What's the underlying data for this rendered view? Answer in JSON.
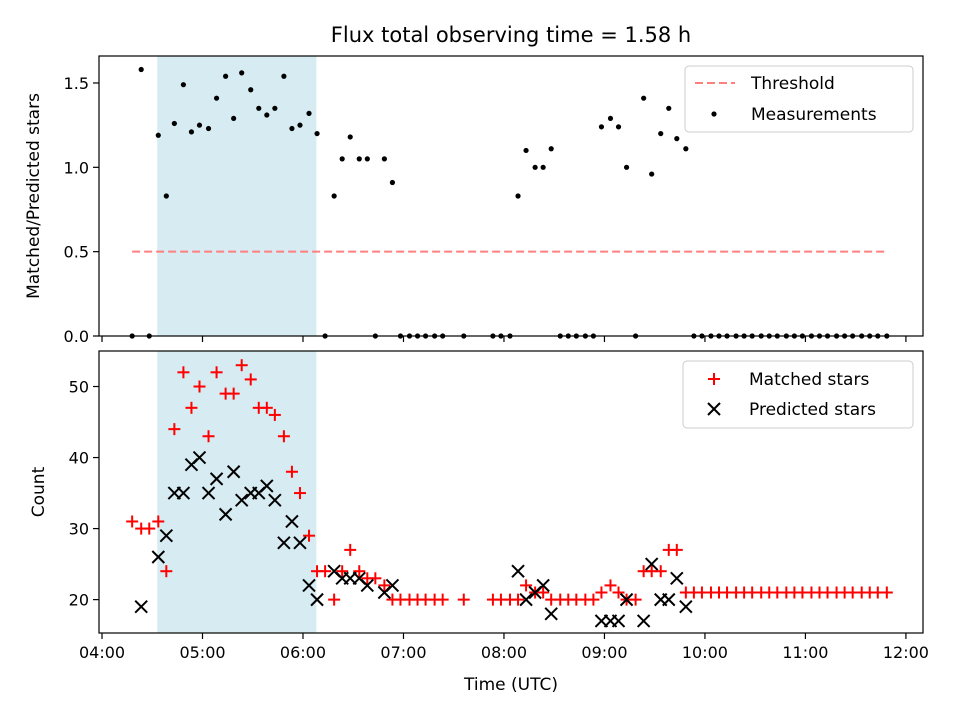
{
  "chart_data": [
    {
      "type": "scatter",
      "title": "Flux total observing time = 1.58 h",
      "xlabel": "",
      "ylabel": "Matched/Predicted stars",
      "x_unit": "hours UTC",
      "xlim": [
        3.97,
        12.17
      ],
      "ylim": [
        0,
        1.66
      ],
      "yticks": [
        "0.0",
        "0.5",
        "1.0",
        "1.5"
      ],
      "shaded_interval": {
        "start": "04:33",
        "end": "06:08",
        "color": "#add8e6"
      },
      "legend_position": "top-right",
      "series": [
        {
          "name": "Threshold",
          "style": "dashed-line",
          "color": "#ff7f7f",
          "x": [
            4.3,
            11.8
          ],
          "y": [
            0.5,
            0.5
          ]
        },
        {
          "name": "Measurements",
          "style": "dots",
          "color": "#000000",
          "x": [
            4.3,
            4.39,
            4.47,
            4.56,
            4.64,
            4.72,
            4.81,
            4.89,
            4.97,
            5.06,
            5.14,
            5.23,
            5.31,
            5.39,
            5.48,
            5.56,
            5.64,
            5.72,
            5.81,
            5.89,
            5.97,
            6.06,
            6.14,
            6.22,
            6.31,
            6.39,
            6.47,
            6.56,
            6.64,
            6.72,
            6.81,
            6.89,
            6.97,
            7.06,
            7.14,
            7.22,
            7.31,
            7.39,
            7.6,
            7.89,
            7.97,
            8.06,
            8.14,
            8.22,
            8.31,
            8.39,
            8.47,
            8.56,
            8.64,
            8.72,
            8.81,
            8.89,
            8.97,
            9.06,
            9.14,
            9.22,
            9.31,
            9.39,
            9.47,
            9.56,
            9.64,
            9.72,
            9.81,
            9.89,
            9.97,
            10.06,
            10.14,
            10.22,
            10.31,
            10.39,
            10.47,
            10.56,
            10.64,
            10.72,
            10.81,
            10.89,
            10.97,
            11.06,
            11.14,
            11.22,
            11.31,
            11.39,
            11.47,
            11.56,
            11.64,
            11.72,
            11.81
          ],
          "y": [
            0.0,
            1.58,
            0.0,
            1.19,
            0.83,
            1.26,
            1.49,
            1.21,
            1.25,
            1.23,
            1.41,
            1.54,
            1.29,
            1.56,
            1.46,
            1.35,
            1.31,
            1.35,
            1.54,
            1.23,
            1.25,
            1.32,
            1.2,
            0.0,
            0.83,
            1.05,
            1.18,
            1.05,
            1.05,
            0.0,
            1.05,
            0.91,
            0.0,
            0.0,
            0.0,
            0.0,
            0.0,
            0.0,
            0.0,
            0.0,
            0.0,
            0.0,
            0.83,
            1.1,
            1.0,
            1.0,
            1.11,
            0.0,
            0.0,
            0.0,
            0.0,
            0.0,
            1.24,
            1.29,
            1.24,
            1.0,
            0.0,
            1.41,
            0.96,
            1.2,
            1.35,
            1.17,
            1.11,
            0.0,
            0.0,
            0.0,
            0.0,
            0.0,
            0.0,
            0.0,
            0.0,
            0.0,
            0.0,
            0.0,
            0.0,
            0.0,
            0.0,
            0.0,
            0.0,
            0.0,
            0.0,
            0.0,
            0.0,
            0.0,
            0.0,
            0.0,
            0.0
          ]
        }
      ]
    },
    {
      "type": "scatter",
      "title": "",
      "xlabel": "Time (UTC)",
      "ylabel": "Count",
      "x_unit": "hours UTC",
      "xlim": [
        3.97,
        12.17
      ],
      "ylim": [
        15.3,
        55.0
      ],
      "yticks": [
        "20",
        "30",
        "40",
        "50"
      ],
      "xticks": [
        "04:00",
        "05:00",
        "06:00",
        "07:00",
        "08:00",
        "09:00",
        "10:00",
        "11:00",
        "12:00"
      ],
      "shaded_interval": {
        "start": "04:33",
        "end": "06:08",
        "color": "#add8e6"
      },
      "legend_position": "top-right",
      "series": [
        {
          "name": "Matched stars",
          "marker": "+",
          "color": "#ff0000",
          "x": [
            4.3,
            4.39,
            4.47,
            4.56,
            4.64,
            4.72,
            4.81,
            4.89,
            4.97,
            5.06,
            5.14,
            5.23,
            5.31,
            5.39,
            5.48,
            5.56,
            5.64,
            5.72,
            5.81,
            5.89,
            5.97,
            6.06,
            6.14,
            6.22,
            6.31,
            6.39,
            6.47,
            6.56,
            6.64,
            6.72,
            6.81,
            6.89,
            6.97,
            7.06,
            7.14,
            7.22,
            7.31,
            7.39,
            7.6,
            7.89,
            7.97,
            8.06,
            8.14,
            8.22,
            8.31,
            8.39,
            8.47,
            8.56,
            8.64,
            8.72,
            8.81,
            8.89,
            8.97,
            9.06,
            9.14,
            9.22,
            9.31,
            9.39,
            9.47,
            9.56,
            9.64,
            9.72,
            9.81,
            9.89,
            9.97,
            10.06,
            10.14,
            10.22,
            10.31,
            10.39,
            10.47,
            10.56,
            10.64,
            10.72,
            10.81,
            10.89,
            10.97,
            11.06,
            11.14,
            11.22,
            11.31,
            11.39,
            11.47,
            11.56,
            11.64,
            11.72,
            11.81
          ],
          "y": [
            31,
            30,
            30,
            31,
            24,
            44,
            52,
            47,
            50,
            43,
            52,
            49,
            49,
            53,
            51,
            47,
            47,
            46,
            43,
            38,
            35,
            29,
            24,
            24,
            20,
            24,
            27,
            24,
            23,
            23,
            22,
            20,
            20,
            20,
            20,
            20,
            20,
            20,
            20,
            20,
            20,
            20,
            20,
            22,
            21,
            21,
            20,
            20,
            20,
            20,
            20,
            20,
            21,
            22,
            21,
            20,
            20,
            24,
            24,
            24,
            27,
            27,
            21,
            21,
            21,
            21,
            21,
            21,
            21,
            21,
            21,
            21,
            21,
            21,
            21,
            21,
            21,
            21,
            21,
            21,
            21,
            21,
            21,
            21,
            21,
            21,
            21
          ]
        },
        {
          "name": "Predicted stars",
          "marker": "x",
          "color": "#000000",
          "x": [
            4.39,
            4.56,
            4.64,
            4.72,
            4.81,
            4.89,
            4.97,
            5.06,
            5.14,
            5.23,
            5.31,
            5.39,
            5.48,
            5.56,
            5.64,
            5.72,
            5.81,
            5.89,
            5.97,
            6.06,
            6.14,
            6.31,
            6.39,
            6.47,
            6.56,
            6.64,
            6.81,
            6.89,
            8.14,
            8.22,
            8.31,
            8.39,
            8.47,
            8.97,
            9.06,
            9.14,
            9.22,
            9.39,
            9.47,
            9.56,
            9.64,
            9.72,
            9.81
          ],
          "y": [
            19,
            26,
            29,
            35,
            35,
            39,
            40,
            35,
            37,
            32,
            38,
            34,
            35,
            35,
            36,
            34,
            28,
            31,
            28,
            22,
            20,
            24,
            23,
            23,
            23,
            22,
            21,
            22,
            24,
            20,
            21,
            22,
            18,
            17,
            17,
            17,
            20,
            17,
            25,
            20,
            20,
            23,
            19
          ]
        }
      ]
    }
  ]
}
